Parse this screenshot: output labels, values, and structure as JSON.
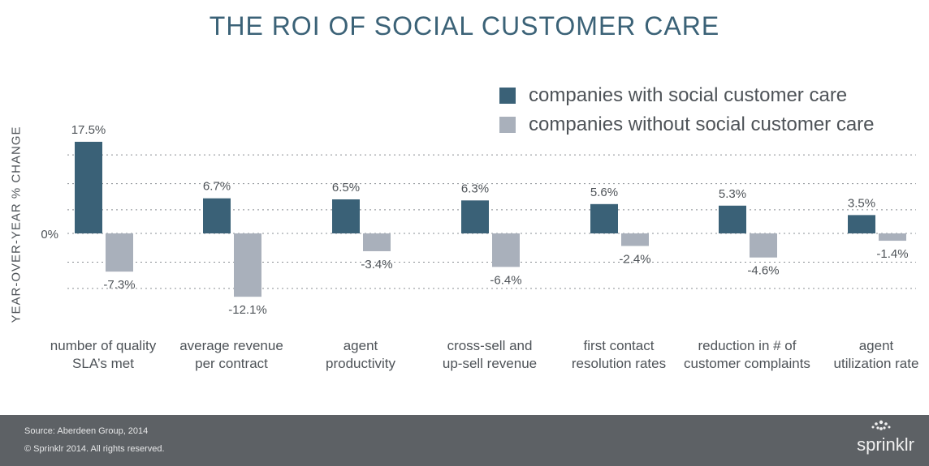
{
  "title": "THE ROI OF SOCIAL CUSTOMER CARE",
  "footer": {
    "source": "Source: Aberdeen Group, 2014",
    "copyright": "© Sprinklr 2014. All rights reserved.",
    "brand": "sprinklr"
  },
  "colors": {
    "with": "#3a6177",
    "without": "#a9b0bb",
    "gridline": "#8a8f94",
    "title": "#3b6277"
  },
  "chart_data": {
    "type": "bar",
    "title": "THE ROI OF SOCIAL CUSTOMER CARE",
    "ylabel": "YEAR-OVER-YEAR % CHANGE",
    "xlabel": "",
    "zero_label": "0%",
    "legend_position": "top-right",
    "grid": true,
    "categories": [
      [
        "number of quality",
        "SLA’s met"
      ],
      [
        "average revenue",
        "per contract"
      ],
      [
        "agent",
        "productivity"
      ],
      [
        "cross-sell and",
        "up-sell revenue"
      ],
      [
        "first contact",
        "resolution rates"
      ],
      [
        "reduction in # of",
        "customer complaints"
      ],
      [
        "agent",
        "utilization rate"
      ]
    ],
    "series": [
      {
        "name": "companies with social customer care",
        "values": [
          17.5,
          6.7,
          6.5,
          6.3,
          5.6,
          5.3,
          3.5
        ],
        "labels": [
          "17.5%",
          "6.7%",
          "6.5%",
          "6.3%",
          "5.6%",
          "5.3%",
          "3.5%"
        ]
      },
      {
        "name": "companies without social customer care",
        "values": [
          -7.3,
          -12.1,
          -3.4,
          -6.4,
          -2.4,
          -4.6,
          -1.4
        ],
        "labels": [
          "-7.3%",
          "-12.1%",
          "-3.4%",
          "-6.4%",
          "-2.4%",
          "-4.6%",
          "-1.4%"
        ]
      }
    ]
  }
}
